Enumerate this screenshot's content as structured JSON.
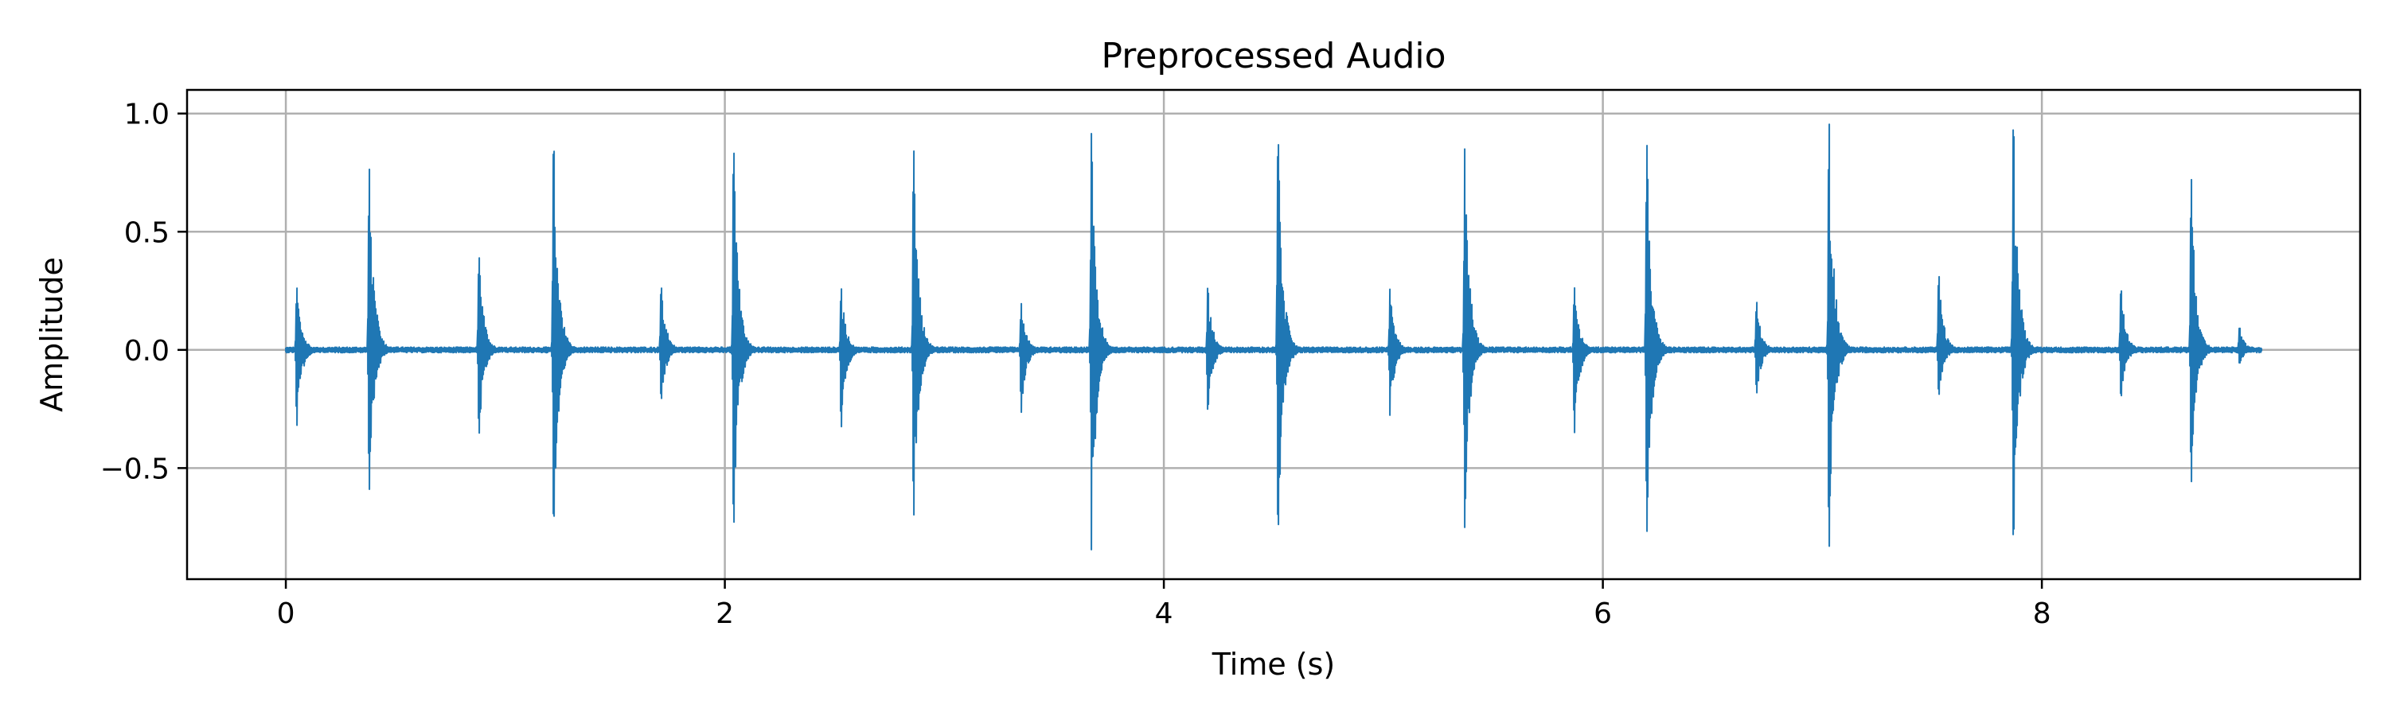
{
  "chart_data": {
    "type": "line",
    "title": "Preprocessed Audio",
    "xlabel": "Time (s)",
    "ylabel": "Amplitude",
    "xlim": [
      -0.45,
      9.45
    ],
    "ylim": [
      -0.97,
      1.1
    ],
    "xticks": [
      0,
      2,
      4,
      6,
      8
    ],
    "xtick_labels": [
      "0",
      "2",
      "4",
      "6",
      "8"
    ],
    "yticks": [
      1.0,
      0.5,
      0.0,
      -0.5
    ],
    "ytick_labels": [
      "1.0",
      "0.5",
      "0.0",
      "−0.5"
    ],
    "grid": true,
    "color": "#1f77b4",
    "series": [
      {
        "duration": 9.0,
        "noise_level": 0.012,
        "peaks": [
          {
            "t": 0.05,
            "max": 0.27,
            "min": -0.33
          },
          {
            "t": 0.38,
            "max": 0.79,
            "min": -0.61
          },
          {
            "t": 0.88,
            "max": 0.41,
            "min": -0.37
          },
          {
            "t": 1.22,
            "max": 0.92,
            "min": -0.77
          },
          {
            "t": 1.71,
            "max": 0.28,
            "min": -0.22
          },
          {
            "t": 2.04,
            "max": 0.89,
            "min": -0.78
          },
          {
            "t": 2.53,
            "max": 0.27,
            "min": -0.34
          },
          {
            "t": 2.86,
            "max": 0.88,
            "min": -0.73
          },
          {
            "t": 3.35,
            "max": 0.2,
            "min": -0.27
          },
          {
            "t": 3.67,
            "max": 0.92,
            "min": -0.85
          },
          {
            "t": 4.2,
            "max": 0.27,
            "min": -0.26
          },
          {
            "t": 4.52,
            "max": 0.94,
            "min": -0.8
          },
          {
            "t": 5.03,
            "max": 0.26,
            "min": -0.28
          },
          {
            "t": 5.37,
            "max": 0.86,
            "min": -0.76
          },
          {
            "t": 5.87,
            "max": 0.27,
            "min": -0.36
          },
          {
            "t": 6.2,
            "max": 0.89,
            "min": -0.79
          },
          {
            "t": 6.7,
            "max": 0.21,
            "min": -0.19
          },
          {
            "t": 7.03,
            "max": 1.0,
            "min": -0.87
          },
          {
            "t": 7.53,
            "max": 0.33,
            "min": -0.2
          },
          {
            "t": 7.87,
            "max": 1.0,
            "min": -0.84
          },
          {
            "t": 8.36,
            "max": 0.27,
            "min": -0.21
          },
          {
            "t": 8.68,
            "max": 0.75,
            "min": -0.58
          },
          {
            "t": 8.9,
            "max": 0.1,
            "min": -0.06
          }
        ]
      }
    ]
  }
}
